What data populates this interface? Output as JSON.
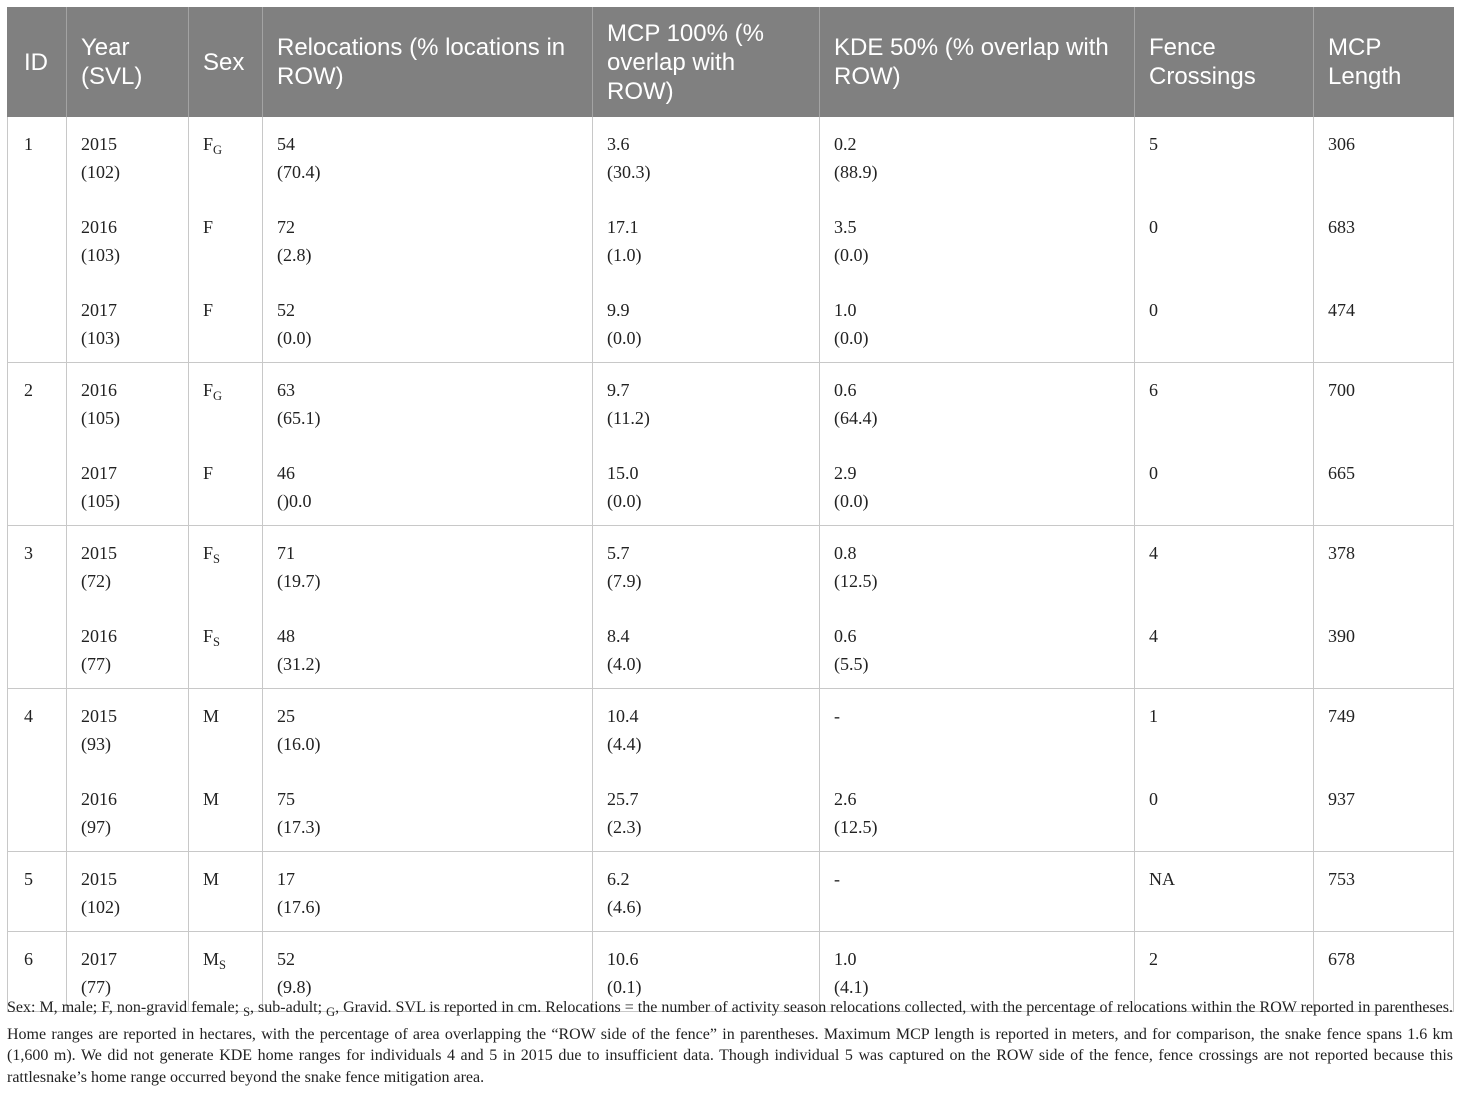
{
  "table": {
    "headers": [
      "ID",
      "Year (SVL)",
      "Sex",
      "Relocations (% locations in ROW)",
      "MCP 100% (% overlap with ROW)",
      "KDE 50% (% overlap with ROW)",
      "Fence Crossings",
      "MCP Length"
    ],
    "groups": [
      {
        "id": "1",
        "rows": [
          {
            "year": "2015",
            "svl": "(102)",
            "sex": "F",
            "sex_sub": "G",
            "reloc": "54",
            "reloc_pct": "(70.4)",
            "mcp": "3.6",
            "mcp_pct": "(30.3)",
            "kde": "0.2",
            "kde_pct": "(88.9)",
            "fence": "5",
            "length": "306"
          },
          {
            "year": "2016",
            "svl": "(103)",
            "sex": "F",
            "sex_sub": "",
            "reloc": "72",
            "reloc_pct": "(2.8)",
            "mcp": "17.1",
            "mcp_pct": "(1.0)",
            "kde": "3.5",
            "kde_pct": "(0.0)",
            "fence": "0",
            "length": "683"
          },
          {
            "year": "2017",
            "svl": "(103)",
            "sex": "F",
            "sex_sub": "",
            "reloc": "52",
            "reloc_pct": "(0.0)",
            "mcp": "9.9",
            "mcp_pct": "(0.0)",
            "kde": "1.0",
            "kde_pct": "(0.0)",
            "fence": "0",
            "length": "474"
          }
        ]
      },
      {
        "id": "2",
        "rows": [
          {
            "year": "2016",
            "svl": "(105)",
            "sex": "F",
            "sex_sub": "G",
            "reloc": "63",
            "reloc_pct": "(65.1)",
            "mcp": "9.7",
            "mcp_pct": "(11.2)",
            "kde": "0.6",
            "kde_pct": "(64.4)",
            "fence": "6",
            "length": "700"
          },
          {
            "year": "2017",
            "svl": "(105)",
            "sex": "F",
            "sex_sub": "",
            "reloc": "46",
            "reloc_pct": "()0.0",
            "mcp": "15.0",
            "mcp_pct": "(0.0)",
            "kde": "2.9",
            "kde_pct": "(0.0)",
            "fence": "0",
            "length": "665"
          }
        ]
      },
      {
        "id": "3",
        "rows": [
          {
            "year": "2015",
            "svl": "(72)",
            "sex": "F",
            "sex_sub": "S",
            "reloc": "71",
            "reloc_pct": "(19.7)",
            "mcp": "5.7",
            "mcp_pct": "(7.9)",
            "kde": "0.8",
            "kde_pct": "(12.5)",
            "fence": "4",
            "length": "378"
          },
          {
            "year": "2016",
            "svl": "(77)",
            "sex": "F",
            "sex_sub": "S",
            "reloc": "48",
            "reloc_pct": "(31.2)",
            "mcp": "8.4",
            "mcp_pct": "(4.0)",
            "kde": "0.6",
            "kde_pct": "(5.5)",
            "fence": "4",
            "length": "390"
          }
        ]
      },
      {
        "id": "4",
        "rows": [
          {
            "year": "2015",
            "svl": "(93)",
            "sex": "M",
            "sex_sub": "",
            "reloc": "25",
            "reloc_pct": "(16.0)",
            "mcp": "10.4",
            "mcp_pct": "(4.4)",
            "kde": "-",
            "kde_pct": "",
            "fence": "1",
            "length": "749"
          },
          {
            "year": "2016",
            "svl": "(97)",
            "sex": "M",
            "sex_sub": "",
            "reloc": "75",
            "reloc_pct": "(17.3)",
            "mcp": "25.7",
            "mcp_pct": "(2.3)",
            "kde": "2.6",
            "kde_pct": "(12.5)",
            "fence": "0",
            "length": "937"
          }
        ]
      },
      {
        "id": "5",
        "rows": [
          {
            "year": "2015",
            "svl": "(102)",
            "sex": "M",
            "sex_sub": "",
            "reloc": "17",
            "reloc_pct": "(17.6)",
            "mcp": "6.2",
            "mcp_pct": "(4.6)",
            "kde": "-",
            "kde_pct": "",
            "fence": "NA",
            "length": "753"
          }
        ]
      },
      {
        "id": "6",
        "rows": [
          {
            "year": "2017",
            "svl": "(77)",
            "sex": "M",
            "sex_sub": "S",
            "reloc": "52",
            "reloc_pct": "(9.8)",
            "mcp": "10.6",
            "mcp_pct": "(0.1)",
            "kde": "1.0",
            "kde_pct": "(4.1)",
            "fence": "2",
            "length": "678"
          }
        ]
      }
    ]
  },
  "footnote": {
    "p1": "Sex: M, male; F, non-gravid female; ",
    "s_sub": "S",
    "p2": ", sub-adult; ",
    "g_sub": "G",
    "p3": ", Gravid. SVL is reported in cm. Relocations = the number of activity season relocations collected, with the percentage of relocations within the ROW reported in parentheses. Home ranges are reported in hectares, with the percentage of area overlapping the “ROW side of the fence” in parentheses. Maximum MCP length is reported in meters, and for comparison, the snake fence spans 1.6 km (1,600 m). We did not generate KDE home ranges for individuals 4 and 5 in 2015 due to insufficient data. Though individual 5 was captured on the ROW side of the fence, fence crossings are not reported because this rattlesnake’s home range occurred beyond the snake fence mitigation area."
  }
}
